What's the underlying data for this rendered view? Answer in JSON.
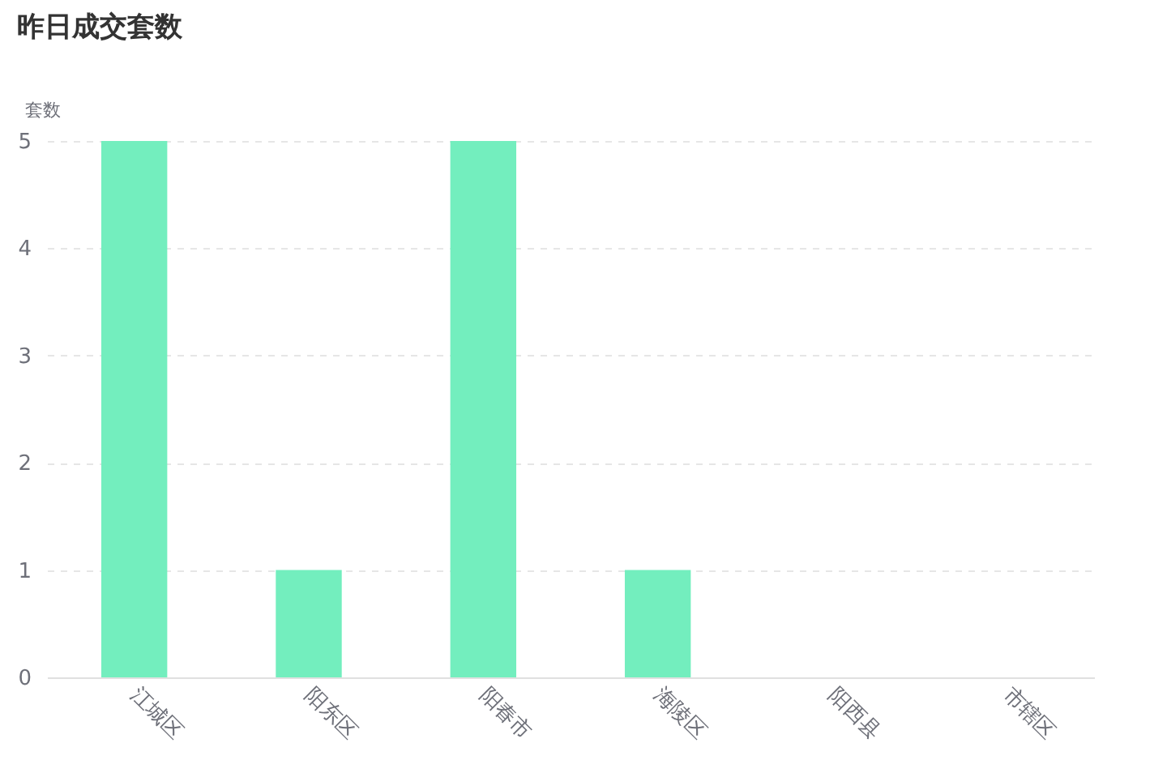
{
  "chart_data": {
    "type": "bar",
    "title": "昨日成交套数",
    "ylabel": "套数",
    "categories": [
      "江城区",
      "阳东区",
      "阳春市",
      "海陵区",
      "阳西县",
      "市辖区"
    ],
    "values": [
      5,
      1,
      5,
      1,
      0,
      0
    ],
    "color": "#73eebe",
    "ylim": [
      0,
      5
    ],
    "yticks": [
      0,
      1,
      2,
      3,
      4,
      5
    ],
    "grid": "y"
  }
}
